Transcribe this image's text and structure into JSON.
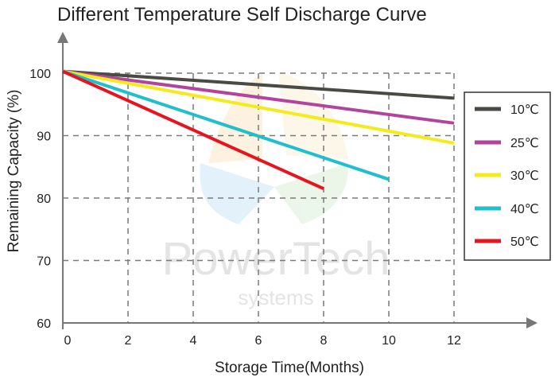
{
  "colors": {
    "10C": "#4a4a44",
    "25C": "#b3449e",
    "30C": "#f4ec1a",
    "40C": "#1fbfcc",
    "50C": "#e8131e",
    "grid": "#7a7a7a",
    "axis": "#777777"
  },
  "watermark": {
    "line1": "PowerTech",
    "line2": "systems"
  },
  "chart_data": {
    "type": "line",
    "title": "Different Temperature Self Discharge Curve",
    "xlabel": "Storage Time(Months)",
    "ylabel": "Remaining Capacity (%)",
    "xlim": [
      0,
      12
    ],
    "ylim": [
      60,
      100
    ],
    "x_ticks": [
      "0",
      "2",
      "4",
      "6",
      "8",
      "10",
      "12"
    ],
    "y_ticks": [
      "60",
      "70",
      "80",
      "90",
      "100"
    ],
    "grid": true,
    "legend_position": "right",
    "series": [
      {
        "name": "10℃",
        "color_key": "10C",
        "x": [
          0,
          12
        ],
        "y": [
          100.3,
          96
        ]
      },
      {
        "name": "25℃",
        "color_key": "25C",
        "x": [
          0,
          12
        ],
        "y": [
          100.3,
          92
        ]
      },
      {
        "name": "30℃",
        "color_key": "30C",
        "x": [
          0,
          12
        ],
        "y": [
          100.3,
          88.8
        ]
      },
      {
        "name": "40℃",
        "color_key": "40C",
        "x": [
          0,
          10
        ],
        "y": [
          100.3,
          83
        ]
      },
      {
        "name": "50℃",
        "color_key": "50C",
        "x": [
          0,
          8
        ],
        "y": [
          100.3,
          81.5
        ]
      }
    ]
  }
}
